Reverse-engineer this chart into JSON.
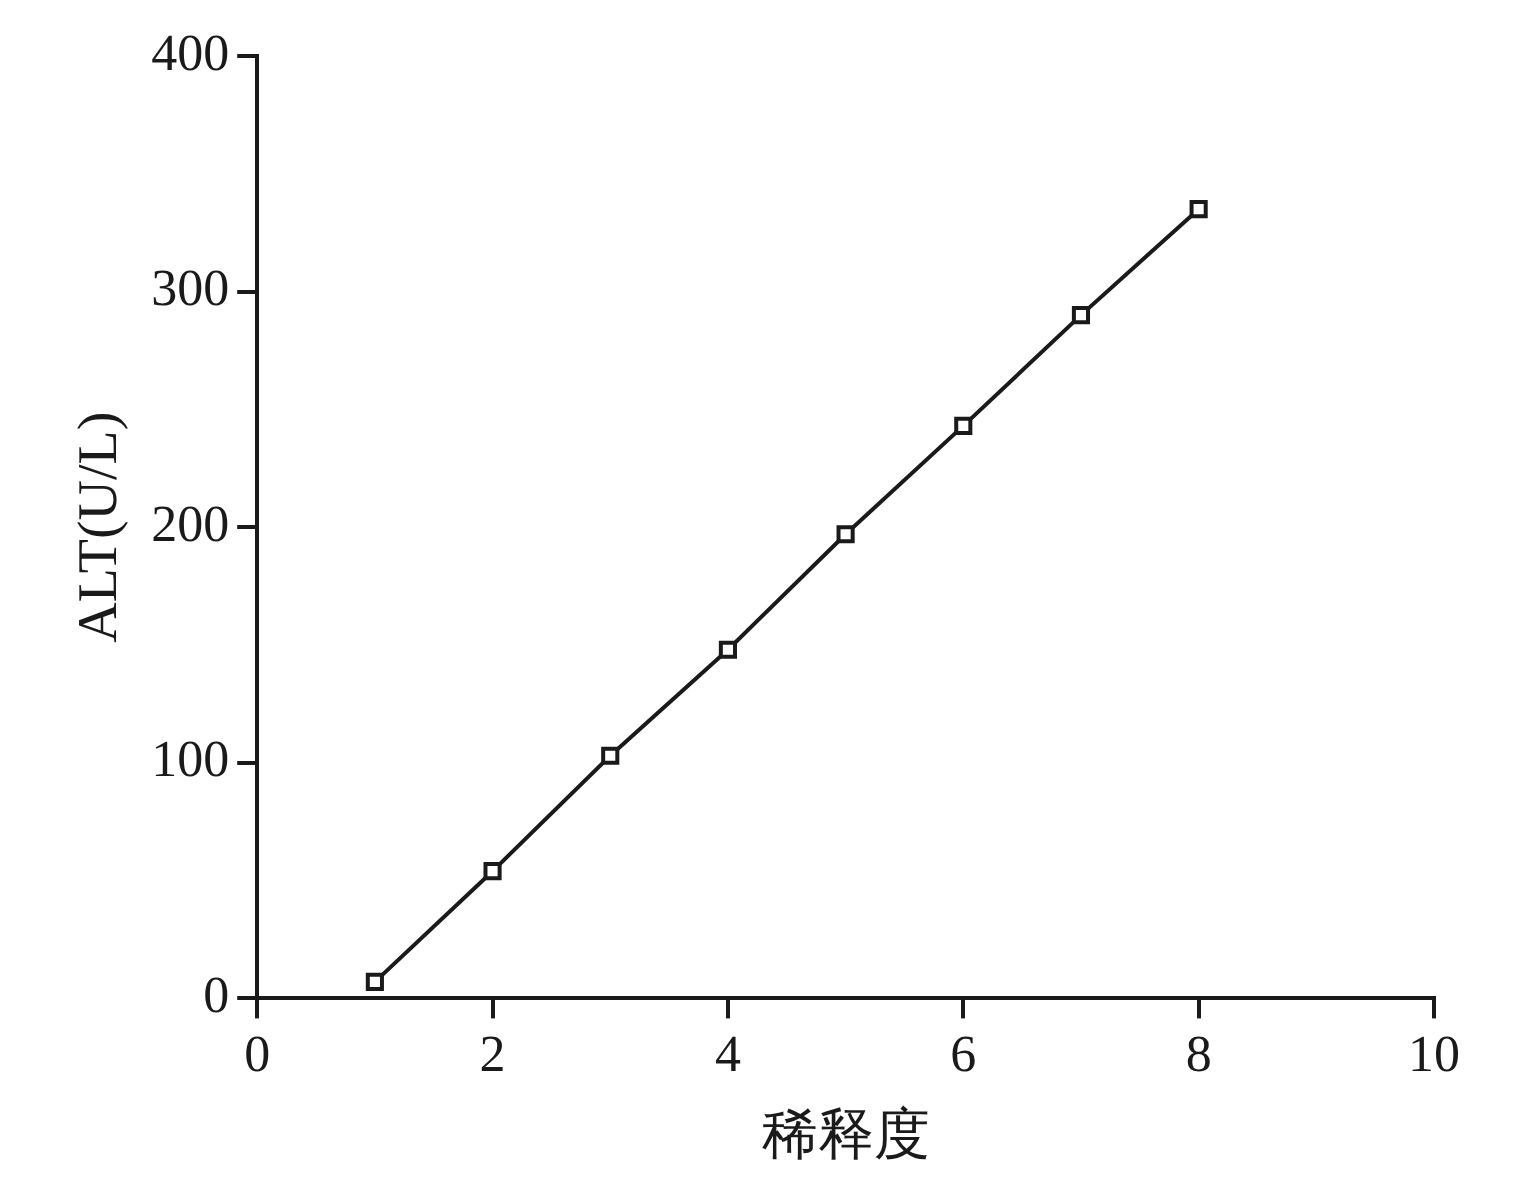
{
  "chart_data": {
    "type": "line",
    "xlabel": "稀释度",
    "ylabel": "ALT(U/L)",
    "x": [
      1,
      2,
      3,
      4,
      5,
      6,
      7,
      8
    ],
    "series": [
      {
        "color": "#1a1a1a",
        "values": [
          7,
          54,
          103,
          148,
          197,
          243,
          290,
          335
        ]
      }
    ],
    "xlim": [
      0,
      10
    ],
    "xticks": [
      0,
      2,
      4,
      6,
      8,
      10
    ],
    "ylim": [
      0,
      400
    ],
    "yticks": [
      0,
      100,
      200,
      300,
      400
    ],
    "grid": false,
    "legend": false,
    "marker": "square",
    "line_style": "solid"
  }
}
